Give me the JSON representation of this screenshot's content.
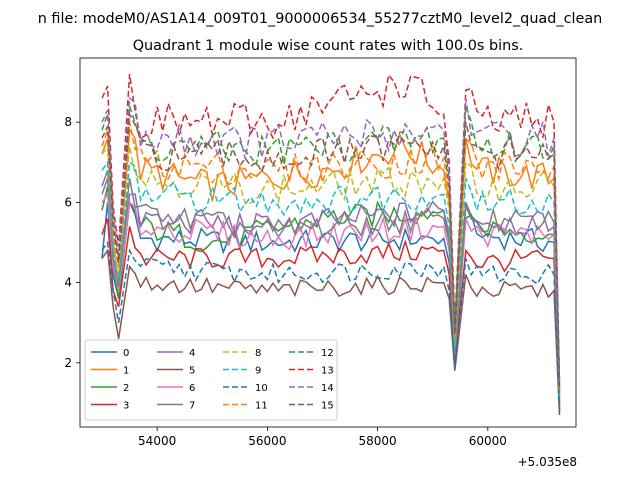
{
  "chart_data": {
    "type": "line",
    "suptitle": "n file: modeM0/AS1A14_009T01_9000006534_55277cztM0_level2_quad_clean",
    "title": "Quadrant 1 module wise count rates with 100.0s bins.",
    "xlabel": "",
    "ylabel": "",
    "offset_label": "+5.035e8",
    "xlim": [
      52600,
      61600
    ],
    "ylim": [
      0.4,
      9.6
    ],
    "xticks": [
      54000,
      56000,
      58000,
      60000
    ],
    "yticks": [
      2,
      4,
      6,
      8
    ],
    "grid": false,
    "legend_placement": "lower-left",
    "x": {
      "start": 53000,
      "step": 100,
      "count": 84
    },
    "series": [
      {
        "name": "0",
        "color": "#1f77b4",
        "dash": "",
        "mean": 5.0,
        "pts": [
          [
            53000,
            4.6
          ],
          [
            53100,
            6.0
          ],
          [
            53200,
            4.2
          ],
          [
            53300,
            3.6
          ],
          [
            53500,
            6.0
          ],
          [
            53700,
            5.1
          ],
          [
            56000,
            5.0
          ],
          [
            59200,
            5.1
          ],
          [
            59300,
            4.5
          ],
          [
            59400,
            2.0
          ],
          [
            59600,
            5.6
          ],
          [
            59800,
            5.2
          ],
          [
            61200,
            5.0
          ],
          [
            61300,
            0.8
          ]
        ]
      },
      {
        "name": "1",
        "color": "#ff7f0e",
        "dash": "",
        "mean": 6.6,
        "pts": [
          [
            53000,
            7.2
          ],
          [
            53100,
            7.6
          ],
          [
            53200,
            5.0
          ],
          [
            53300,
            4.0
          ],
          [
            53500,
            7.8
          ],
          [
            53700,
            6.8
          ],
          [
            55000,
            6.4
          ],
          [
            57000,
            6.8
          ],
          [
            58500,
            7.4
          ],
          [
            59200,
            6.8
          ],
          [
            59300,
            6.0
          ],
          [
            59400,
            2.4
          ],
          [
            59600,
            7.6
          ],
          [
            59800,
            6.8
          ],
          [
            61200,
            6.6
          ],
          [
            61300,
            1.2
          ]
        ]
      },
      {
        "name": "2",
        "color": "#2ca02c",
        "dash": "",
        "mean": 5.3,
        "pts": [
          [
            53000,
            5.8
          ],
          [
            53100,
            6.4
          ],
          [
            53200,
            4.4
          ],
          [
            53300,
            3.6
          ],
          [
            53500,
            6.0
          ],
          [
            53700,
            5.4
          ],
          [
            55000,
            5.0
          ],
          [
            57000,
            5.6
          ],
          [
            59200,
            5.8
          ],
          [
            59300,
            5.0
          ],
          [
            59400,
            2.2
          ],
          [
            59600,
            6.0
          ],
          [
            59800,
            5.4
          ],
          [
            61200,
            5.2
          ],
          [
            61300,
            0.9
          ]
        ]
      },
      {
        "name": "3",
        "color": "#d62728",
        "dash": "",
        "mean": 4.6,
        "pts": [
          [
            53000,
            5.2
          ],
          [
            53100,
            5.6
          ],
          [
            53200,
            3.8
          ],
          [
            53300,
            3.4
          ],
          [
            53500,
            5.4
          ],
          [
            53700,
            4.6
          ],
          [
            56000,
            4.6
          ],
          [
            59200,
            4.8
          ],
          [
            59300,
            4.2
          ],
          [
            59400,
            2.0
          ],
          [
            59600,
            4.8
          ],
          [
            59800,
            4.5
          ],
          [
            61200,
            4.6
          ],
          [
            61300,
            0.8
          ]
        ]
      },
      {
        "name": "4",
        "color": "#9467bd",
        "dash": "",
        "mean": 5.5,
        "pts": [
          [
            53000,
            6.2
          ],
          [
            53100,
            6.6
          ],
          [
            53200,
            4.6
          ],
          [
            53300,
            3.8
          ],
          [
            53500,
            6.2
          ],
          [
            53700,
            5.6
          ],
          [
            56000,
            5.4
          ],
          [
            59200,
            5.8
          ],
          [
            59300,
            5.2
          ],
          [
            59400,
            2.2
          ],
          [
            59600,
            6.0
          ],
          [
            59800,
            5.6
          ],
          [
            61200,
            5.4
          ],
          [
            61300,
            1.0
          ]
        ]
      },
      {
        "name": "5",
        "color": "#8c564b",
        "dash": "",
        "mean": 3.9,
        "pts": [
          [
            53000,
            4.6
          ],
          [
            53100,
            4.8
          ],
          [
            53200,
            3.4
          ],
          [
            53300,
            2.6
          ],
          [
            53500,
            4.4
          ],
          [
            53700,
            4.0
          ],
          [
            56000,
            3.8
          ],
          [
            59200,
            4.0
          ],
          [
            59300,
            3.6
          ],
          [
            59400,
            1.8
          ],
          [
            59600,
            4.2
          ],
          [
            59800,
            3.8
          ],
          [
            61200,
            3.8
          ],
          [
            61300,
            0.7
          ]
        ]
      },
      {
        "name": "6",
        "color": "#e377c2",
        "dash": "",
        "mean": 5.2,
        "pts": [
          [
            53000,
            6.0
          ],
          [
            53100,
            6.2
          ],
          [
            53200,
            4.4
          ],
          [
            53300,
            3.8
          ],
          [
            53500,
            6.0
          ],
          [
            53700,
            5.4
          ],
          [
            56000,
            5.1
          ],
          [
            59200,
            5.4
          ],
          [
            59300,
            4.8
          ],
          [
            59400,
            2.2
          ],
          [
            59600,
            5.6
          ],
          [
            59800,
            5.2
          ],
          [
            61200,
            5.2
          ],
          [
            61300,
            1.0
          ]
        ]
      },
      {
        "name": "7",
        "color": "#7f7f7f",
        "dash": "",
        "mean": 5.4,
        "pts": [
          [
            53000,
            6.4
          ],
          [
            53100,
            6.8
          ],
          [
            53200,
            4.6
          ],
          [
            53300,
            3.9
          ],
          [
            53500,
            6.6
          ],
          [
            53700,
            5.7
          ],
          [
            56000,
            5.3
          ],
          [
            59200,
            5.6
          ],
          [
            59300,
            5.0
          ],
          [
            59400,
            2.2
          ],
          [
            59600,
            5.9
          ],
          [
            59800,
            5.5
          ],
          [
            61200,
            5.5
          ],
          [
            61300,
            1.0
          ]
        ]
      },
      {
        "name": "8",
        "color": "#bcbd22",
        "dash": "6,3",
        "mean": 6.4,
        "pts": [
          [
            53000,
            7.2
          ],
          [
            53100,
            7.4
          ],
          [
            53200,
            5.0
          ],
          [
            53300,
            4.2
          ],
          [
            53500,
            7.4
          ],
          [
            53700,
            6.6
          ],
          [
            56000,
            6.3
          ],
          [
            59200,
            6.6
          ],
          [
            59300,
            5.8
          ],
          [
            59400,
            2.4
          ],
          [
            59600,
            7.0
          ],
          [
            59800,
            6.4
          ],
          [
            61200,
            6.4
          ],
          [
            61300,
            1.2
          ]
        ]
      },
      {
        "name": "9",
        "color": "#17becf",
        "dash": "6,3",
        "mean": 6.0,
        "pts": [
          [
            53000,
            6.8
          ],
          [
            53100,
            7.0
          ],
          [
            53200,
            4.8
          ],
          [
            53300,
            4.0
          ],
          [
            53500,
            7.0
          ],
          [
            53700,
            6.2
          ],
          [
            56000,
            6.0
          ],
          [
            59200,
            6.2
          ],
          [
            59300,
            5.4
          ],
          [
            59400,
            2.4
          ],
          [
            59600,
            6.6
          ],
          [
            59800,
            6.0
          ],
          [
            61200,
            6.0
          ],
          [
            61300,
            1.1
          ]
        ]
      },
      {
        "name": "10",
        "color": "#1f77b4",
        "dash": "6,3",
        "mean": 4.3,
        "pts": [
          [
            53000,
            4.8
          ],
          [
            53100,
            5.0
          ],
          [
            53200,
            3.8
          ],
          [
            53300,
            3.0
          ],
          [
            53500,
            4.8
          ],
          [
            53700,
            4.4
          ],
          [
            56000,
            4.2
          ],
          [
            59200,
            4.4
          ],
          [
            59300,
            3.8
          ],
          [
            59400,
            1.9
          ],
          [
            59600,
            4.6
          ],
          [
            59800,
            4.2
          ],
          [
            61200,
            4.2
          ],
          [
            61300,
            0.8
          ]
        ]
      },
      {
        "name": "11",
        "color": "#ff7f0e",
        "dash": "6,3",
        "mean": 6.9,
        "pts": [
          [
            53000,
            7.4
          ],
          [
            53100,
            7.8
          ],
          [
            53200,
            5.2
          ],
          [
            53300,
            4.4
          ],
          [
            53500,
            8.0
          ],
          [
            53700,
            7.0
          ],
          [
            56000,
            6.8
          ],
          [
            59200,
            7.1
          ],
          [
            59300,
            6.2
          ],
          [
            59400,
            2.6
          ],
          [
            59600,
            7.6
          ],
          [
            59800,
            6.9
          ],
          [
            61200,
            6.9
          ],
          [
            61300,
            1.3
          ]
        ]
      },
      {
        "name": "12",
        "color": "#2ca02c",
        "dash": "6,3",
        "mean": 7.4,
        "pts": [
          [
            53000,
            7.8
          ],
          [
            53100,
            8.2
          ],
          [
            53200,
            5.6
          ],
          [
            53300,
            4.6
          ],
          [
            53500,
            8.4
          ],
          [
            53700,
            7.4
          ],
          [
            56000,
            7.3
          ],
          [
            59200,
            7.6
          ],
          [
            59300,
            6.6
          ],
          [
            59400,
            2.8
          ],
          [
            59600,
            8.4
          ],
          [
            59800,
            7.4
          ],
          [
            61200,
            7.4
          ],
          [
            61300,
            1.4
          ]
        ]
      },
      {
        "name": "13",
        "color": "#d62728",
        "dash": "6,3",
        "mean": 8.0,
        "pts": [
          [
            53000,
            8.6
          ],
          [
            53100,
            8.9
          ],
          [
            53200,
            5.9
          ],
          [
            53300,
            4.9
          ],
          [
            53500,
            9.2
          ],
          [
            53700,
            8.0
          ],
          [
            56000,
            8.0
          ],
          [
            58500,
            9.0
          ],
          [
            59200,
            8.2
          ],
          [
            59300,
            7.0
          ],
          [
            59400,
            3.0
          ],
          [
            59600,
            8.8
          ],
          [
            59800,
            8.0
          ],
          [
            61200,
            8.0
          ],
          [
            61300,
            1.5
          ]
        ]
      },
      {
        "name": "14",
        "color": "#9467bd",
        "dash": "6,3",
        "mean": 7.6,
        "pts": [
          [
            53000,
            8.0
          ],
          [
            53100,
            8.3
          ],
          [
            53200,
            5.7
          ],
          [
            53300,
            4.7
          ],
          [
            53500,
            8.6
          ],
          [
            53700,
            7.6
          ],
          [
            56000,
            7.5
          ],
          [
            59200,
            7.8
          ],
          [
            59300,
            6.8
          ],
          [
            59400,
            2.9
          ],
          [
            59600,
            8.6
          ],
          [
            59800,
            7.6
          ],
          [
            61200,
            7.6
          ],
          [
            61300,
            1.4
          ]
        ]
      },
      {
        "name": "15",
        "color": "#8c564b",
        "dash": "6,3",
        "mean": 7.2,
        "pts": [
          [
            53000,
            7.6
          ],
          [
            53100,
            7.9
          ],
          [
            53200,
            5.4
          ],
          [
            53300,
            4.5
          ],
          [
            53500,
            8.2
          ],
          [
            53700,
            7.2
          ],
          [
            56000,
            7.1
          ],
          [
            59200,
            7.4
          ],
          [
            59300,
            6.4
          ],
          [
            59400,
            2.7
          ],
          [
            59600,
            8.0
          ],
          [
            59800,
            7.2
          ],
          [
            61200,
            7.2
          ],
          [
            61300,
            1.3
          ]
        ]
      }
    ]
  }
}
